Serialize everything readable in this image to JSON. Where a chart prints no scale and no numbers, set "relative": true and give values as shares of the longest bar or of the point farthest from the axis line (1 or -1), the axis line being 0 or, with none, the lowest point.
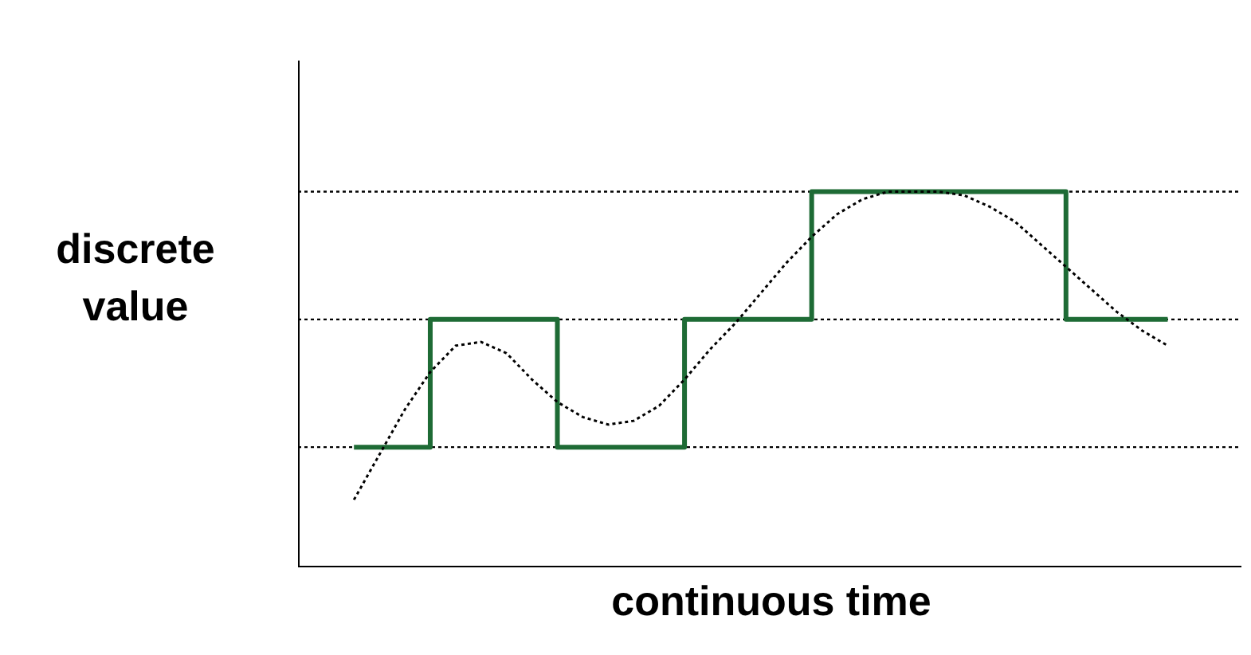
{
  "chart_data": {
    "type": "step",
    "relative": true,
    "xlabel": "continuous time",
    "ylabel": "discrete value",
    "legend": false,
    "categories": [
      null,
      null,
      null,
      null,
      null,
      null,
      null,
      null,
      null,
      null,
      null,
      null,
      null,
      null,
      null,
      null,
      null,
      null,
      null,
      null,
      null,
      null,
      null,
      null,
      null,
      null,
      null,
      null,
      null,
      null,
      null,
      null,
      null
    ],
    "series": [
      {
        "type": "line",
        "color": "#000000",
        "line_style": "dotted",
        "values": [
          0.18,
          0.3,
          0.42,
          0.52,
          0.59,
          0.6,
          0.57,
          0.5,
          0.44,
          0.4,
          0.38,
          0.39,
          0.43,
          0.5,
          0.58,
          0.65,
          0.73,
          0.81,
          0.88,
          0.94,
          0.98,
          1.0,
          1.0,
          1.0,
          0.99,
          0.96,
          0.92,
          0.86,
          0.8,
          0.74,
          0.68,
          0.63,
          0.59
        ]
      },
      {
        "color": "#1e6b35",
        "line_style": "solid",
        "values": [
          0.32,
          0.32,
          0.32,
          0.66,
          0.66,
          0.66,
          0.66,
          0.66,
          0.32,
          0.32,
          0.32,
          0.32,
          0.32,
          0.66,
          0.66,
          0.66,
          0.66,
          0.66,
          1.0,
          1.0,
          1.0,
          1.0,
          1.0,
          1.0,
          1.0,
          1.0,
          1.0,
          1.0,
          0.66,
          0.66,
          0.66,
          0.66,
          0.66
        ]
      }
    ],
    "ref_lines": [
      {
        "axis": "y",
        "value": 0.32,
        "color": "#000000",
        "line_style": "dotted"
      },
      {
        "axis": "y",
        "value": 0.66,
        "color": "#000000",
        "line_style": "dotted"
      },
      {
        "axis": "y",
        "value": 1.0,
        "color": "#000000",
        "line_style": "dotted"
      }
    ]
  }
}
